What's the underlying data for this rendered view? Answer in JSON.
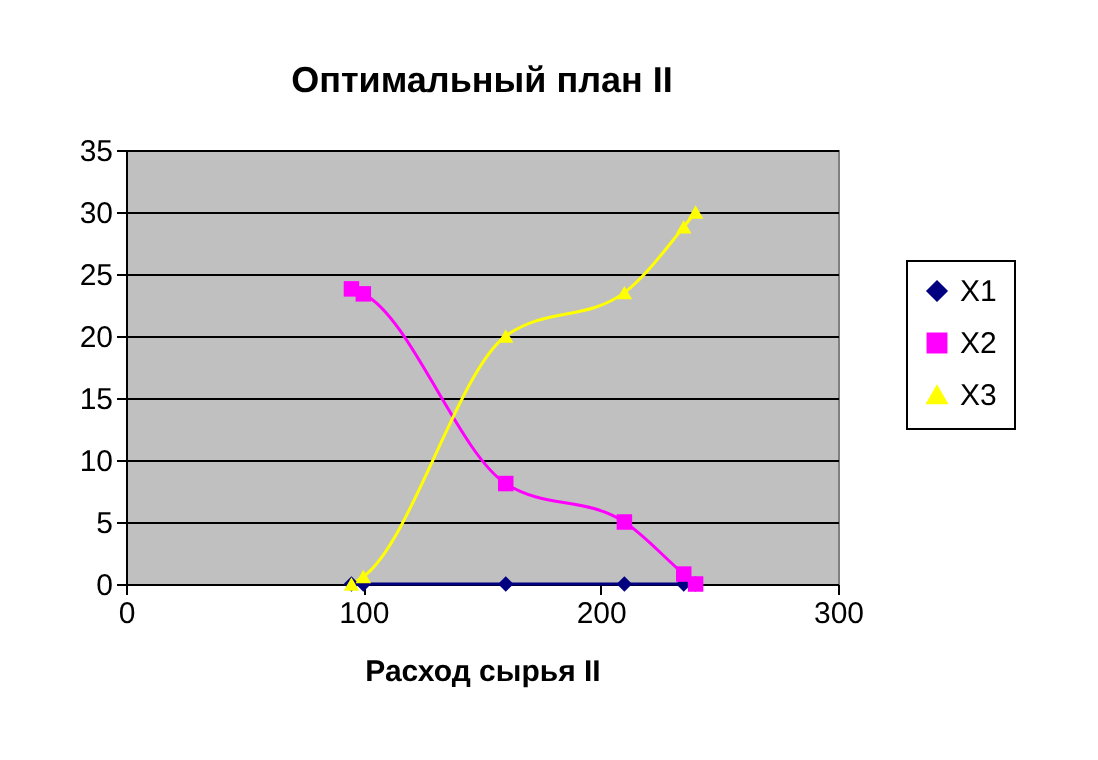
{
  "chart_data": {
    "type": "line",
    "title": "Оптимальный план II",
    "xlabel": "Расход сырья II",
    "x": [
      95,
      100,
      160,
      210,
      235,
      240
    ],
    "series": [
      {
        "name": "X1",
        "color": "#000080",
        "marker": "diamond",
        "values": [
          0,
          0,
          0,
          0,
          0,
          0
        ]
      },
      {
        "name": "X2",
        "color": "#ff00ff",
        "marker": "square",
        "values": [
          23.8,
          23.4,
          8.1,
          5.0,
          0.8,
          0
        ]
      },
      {
        "name": "X3",
        "color": "#ffff00",
        "marker": "triangle",
        "values": [
          0,
          0.6,
          20,
          23.5,
          28.8,
          30
        ]
      }
    ],
    "xlim": [
      0,
      300
    ],
    "xticks": [
      0,
      100,
      200,
      300
    ],
    "ylim": [
      0,
      35
    ],
    "yticks": [
      0,
      5,
      10,
      15,
      20,
      25,
      30,
      35
    ],
    "grid": "y",
    "legend": "right"
  }
}
